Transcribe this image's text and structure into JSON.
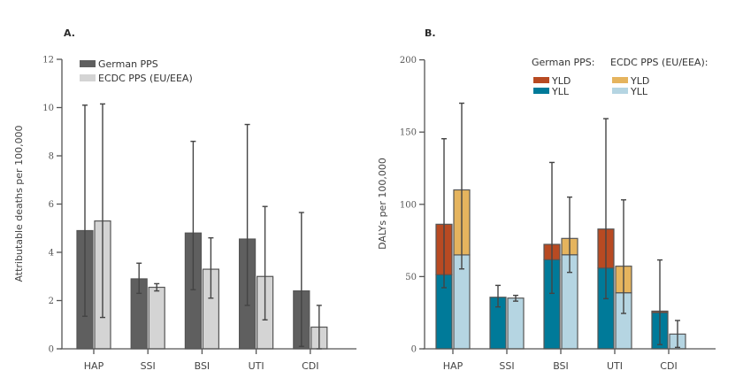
{
  "chart_data": [
    {
      "id": "A",
      "panel_label": "A.",
      "type": "bar",
      "title": "",
      "xlabel": "",
      "ylabel": "Attributable deaths per 100,000",
      "ylim": [
        0,
        12
      ],
      "yticks": [
        0,
        2,
        4,
        6,
        8,
        10,
        12
      ],
      "grid": false,
      "legend_position": "top-left",
      "categories": [
        "HAP",
        "SSI",
        "BSI",
        "UTI",
        "CDI"
      ],
      "series": [
        {
          "name": "German PPS",
          "color": "#5f5f5f",
          "values": [
            4.9,
            2.9,
            4.8,
            4.55,
            2.4
          ],
          "error_low": [
            1.35,
            2.3,
            2.45,
            1.8,
            0.1
          ],
          "error_high": [
            10.1,
            3.55,
            8.6,
            9.3,
            5.65
          ]
        },
        {
          "name": "ECDC PPS (EU/EEA)",
          "color": "#d4d4d4",
          "values": [
            5.3,
            2.55,
            3.3,
            3.0,
            0.9
          ],
          "error_low": [
            1.3,
            2.4,
            2.1,
            1.2,
            0.0
          ],
          "error_high": [
            10.15,
            2.7,
            4.6,
            5.9,
            1.8
          ]
        }
      ]
    },
    {
      "id": "B",
      "panel_label": "B.",
      "type": "bar",
      "stacked": true,
      "title": "",
      "xlabel": "",
      "ylabel": "DALYs per 100,000",
      "ylim": [
        0,
        200
      ],
      "yticks": [
        0,
        50,
        100,
        150,
        200
      ],
      "grid": false,
      "legend_position": "top-right",
      "legend_groups": [
        {
          "title": "German PPS:",
          "entries": [
            {
              "name": "YLD",
              "color": "#b84a22"
            },
            {
              "name": "YLL",
              "color": "#007a99"
            }
          ]
        },
        {
          "title": "ECDC PPS (EU/EEA):",
          "entries": [
            {
              "name": "YLD",
              "color": "#e5b45e"
            },
            {
              "name": "YLL",
              "color": "#b5d5e2"
            }
          ]
        }
      ],
      "categories": [
        "HAP",
        "SSI",
        "BSI",
        "UTI",
        "CDI"
      ],
      "series": [
        {
          "name": "German PPS",
          "yll": [
            51.3,
            35.7,
            61.7,
            55.9,
            25.1
          ],
          "yld": [
            34.9,
            0.0,
            10.6,
            27.0,
            1.0
          ],
          "total": [
            86.2,
            35.7,
            72.3,
            82.9,
            26.1
          ],
          "error_low": [
            42.3,
            29.0,
            38.4,
            34.7,
            2.9
          ],
          "error_high": [
            145.4,
            43.9,
            129.0,
            159.3,
            61.5
          ],
          "colors": {
            "yld": "#b84a22",
            "yll": "#007a99"
          }
        },
        {
          "name": "ECDC PPS (EU/EEA)",
          "yll": [
            65.0,
            35.1,
            65.1,
            38.8,
            10.2
          ],
          "yld": [
            45.0,
            0.0,
            11.3,
            18.4,
            0.0
          ],
          "total": [
            110.0,
            35.1,
            76.4,
            57.2,
            10.2
          ],
          "error_low": [
            55.3,
            33.0,
            52.9,
            24.5,
            1.0
          ],
          "error_high": [
            170.0,
            37.0,
            105.0,
            103.1,
            19.6
          ],
          "colors": {
            "yld": "#e5b45e",
            "yll": "#b5d5e2"
          }
        }
      ]
    }
  ]
}
